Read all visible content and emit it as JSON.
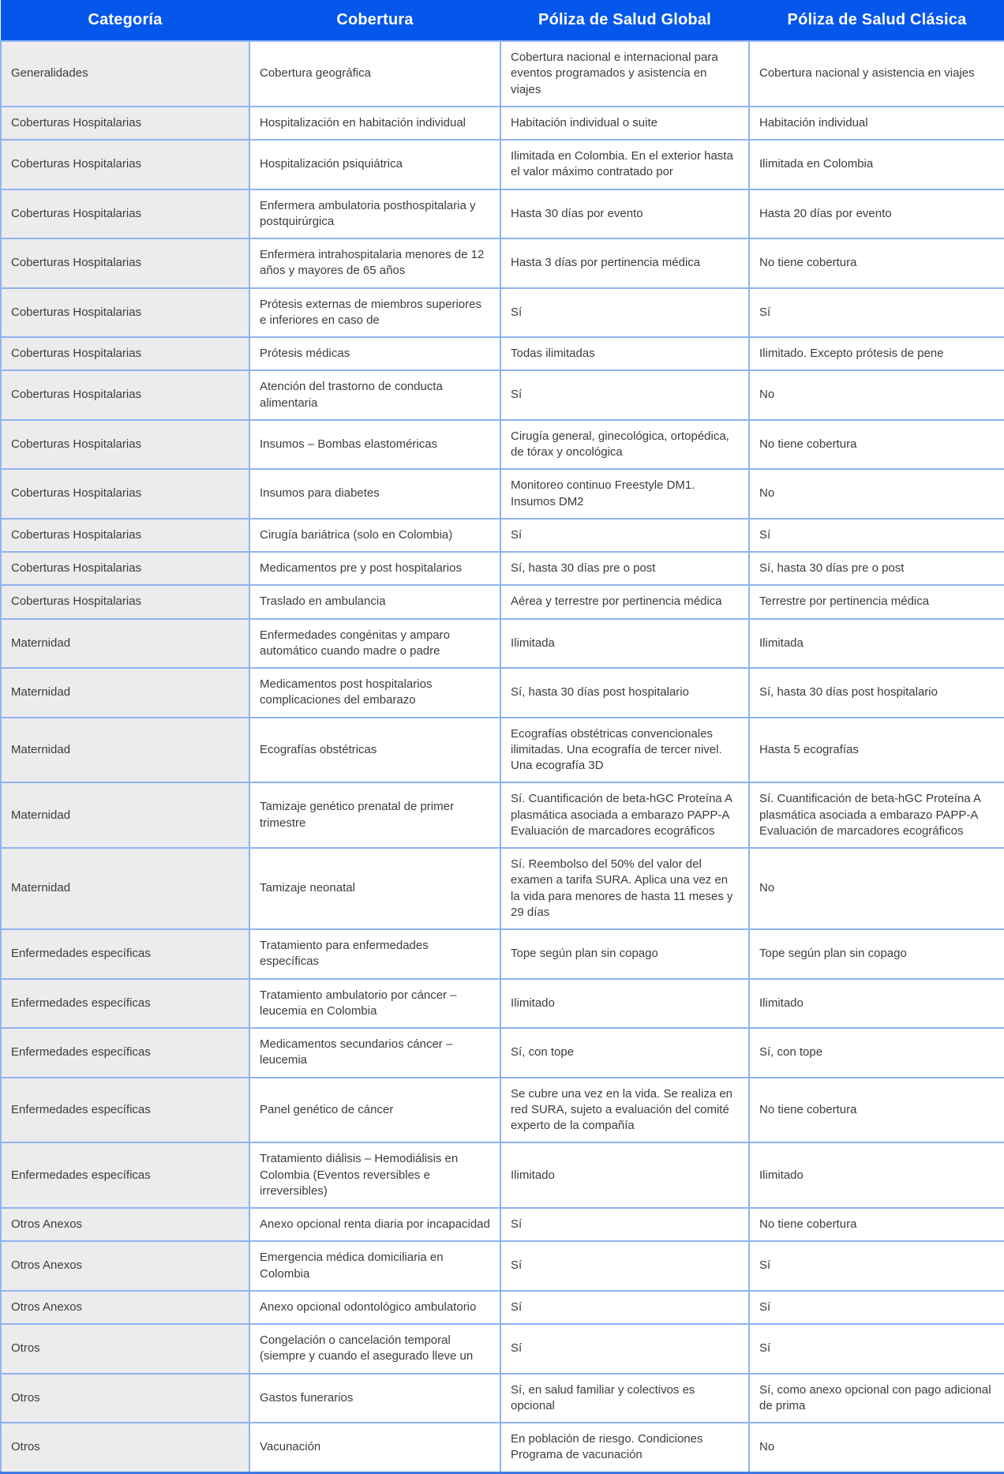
{
  "table": {
    "columns": [
      "Categoría",
      "Cobertura",
      "Póliza de Salud Global",
      "Póliza de Salud Clásica"
    ],
    "rows": [
      {
        "category": "Generalidades",
        "coverage": "Cobertura geográfica",
        "global": "Cobertura nacional e internacional para eventos programados y asistencia en viajes",
        "clasica": "Cobertura nacional y asistencia en viajes"
      },
      {
        "category": "Coberturas Hospitalarias",
        "coverage": "Hospitalización en habitación individual",
        "global": "Habitación individual o suite",
        "clasica": "Habitación individual"
      },
      {
        "category": "Coberturas Hospitalarias",
        "coverage": "Hospitalización psiquiátrica",
        "global": "Ilimitada en Colombia. En el exterior hasta el valor máximo contratado por",
        "clasica": "Ilimitada en Colombia"
      },
      {
        "category": "Coberturas Hospitalarias",
        "coverage": "Enfermera ambulatoria posthospitalaria y postquirúrgica",
        "global": "Hasta 30 días por evento",
        "clasica": "Hasta 20 días por evento"
      },
      {
        "category": "Coberturas Hospitalarias",
        "coverage": "Enfermera intrahospitalaria menores de 12 años y mayores de 65 años",
        "global": "Hasta 3 días por pertinencia médica",
        "clasica": "No tiene cobertura"
      },
      {
        "category": "Coberturas Hospitalarias",
        "coverage": "Prótesis externas de miembros superiores e inferiores en caso de",
        "global": "Sí",
        "clasica": "Sí"
      },
      {
        "category": "Coberturas Hospitalarias",
        "coverage": "Prótesis médicas",
        "global": "Todas ilimitadas",
        "clasica": "Ilimitado. Excepto prótesis de pene"
      },
      {
        "category": "Coberturas Hospitalarias",
        "coverage": "Atención del trastorno de conducta alimentaria",
        "global": "Sí",
        "clasica": "No"
      },
      {
        "category": "Coberturas Hospitalarias",
        "coverage": "Insumos – Bombas elastoméricas",
        "global": "Cirugía general, ginecológica, ortopédica, de tórax y oncológica",
        "clasica": "No tiene cobertura"
      },
      {
        "category": "Coberturas Hospitalarias",
        "coverage": "Insumos para diabetes",
        "global": "Monitoreo continuo Freestyle DM1. Insumos DM2",
        "clasica": "No"
      },
      {
        "category": "Coberturas Hospitalarias",
        "coverage": "Cirugía bariátrica (solo en Colombia)",
        "global": "Sí",
        "clasica": "Sí"
      },
      {
        "category": "Coberturas Hospitalarias",
        "coverage": "Medicamentos pre y post hospitalarios",
        "global": "Sí, hasta 30 días pre o post",
        "clasica": "Sí, hasta 30 días pre o post"
      },
      {
        "category": "Coberturas Hospitalarias",
        "coverage": "Traslado en ambulancia",
        "global": "Aérea y terrestre por pertinencia médica",
        "clasica": "Terrestre por pertinencia médica"
      },
      {
        "category": "Maternidad",
        "coverage": "Enfermedades congénitas y amparo automático cuando madre o padre",
        "global": "Ilimitada",
        "clasica": "Ilimitada"
      },
      {
        "category": "Maternidad",
        "coverage": "Medicamentos post hospitalarios complicaciones del embarazo",
        "global": "Sí, hasta 30 días post hospitalario",
        "clasica": "Sí, hasta 30 días post hospitalario"
      },
      {
        "category": "Maternidad",
        "coverage": "Ecografías obstétricas",
        "global": "Ecografías obstétricas convencionales ilimitadas. Una ecografía de tercer nivel. Una ecografía 3D",
        "clasica": "Hasta 5 ecografías"
      },
      {
        "category": "Maternidad",
        "coverage": "Tamizaje genético prenatal de primer trimestre",
        "global": "Sí. Cuantificación de beta-hGC Proteína A plasmática asociada a embarazo PAPP-A Evaluación de marcadores ecográficos",
        "clasica": "Sí. Cuantificación de beta-hGC Proteína A plasmática asociada a embarazo PAPP-A Evaluación de marcadores ecográficos"
      },
      {
        "category": "Maternidad",
        "coverage": "Tamizaje neonatal",
        "global": "Sí. Reembolso del 50% del valor del examen a tarifa SURA. Aplica una vez en la vida para menores de hasta 11 meses y 29 días",
        "clasica": "No"
      },
      {
        "category": "Enfermedades específicas",
        "coverage": "Tratamiento para enfermedades específicas",
        "global": "Tope según plan sin copago",
        "clasica": "Tope según plan sin copago"
      },
      {
        "category": "Enfermedades específicas",
        "coverage": "Tratamiento ambulatorio por cáncer – leucemia en Colombia",
        "global": "Ilimitado",
        "clasica": "Ilimitado"
      },
      {
        "category": "Enfermedades específicas",
        "coverage": "Medicamentos secundarios cáncer – leucemia",
        "global": "Sí, con tope",
        "clasica": "Sí, con tope"
      },
      {
        "category": "Enfermedades específicas",
        "coverage": "Panel genético de cáncer",
        "global": "Se cubre una vez en la vida. Se realiza en red SURA, sujeto a evaluación del comité experto de la compañía",
        "clasica": "No tiene cobertura"
      },
      {
        "category": "Enfermedades específicas",
        "coverage": "Tratamiento diálisis – Hemodiálisis en Colombia (Eventos reversibles e irreversibles)",
        "global": "Ilimitado",
        "clasica": "Ilimitado"
      },
      {
        "category": "Otros Anexos",
        "coverage": "Anexo opcional renta diaria por incapacidad",
        "global": "Sí",
        "clasica": "No tiene cobertura"
      },
      {
        "category": "Otros Anexos",
        "coverage": "Emergencia médica domiciliaria en Colombia",
        "global": "Sí",
        "clasica": "Sí"
      },
      {
        "category": "Otros Anexos",
        "coverage": "Anexo opcional odontológico ambulatorio",
        "global": "Sí",
        "clasica": "Sí"
      },
      {
        "category": "Otros",
        "coverage": "Congelación o cancelación temporal (siempre y cuando el asegurado lleve un",
        "global": "Sí",
        "clasica": "Sí"
      },
      {
        "category": "Otros",
        "coverage": "Gastos funerarios",
        "global": "Sí, en salud familiar y colectivos es opcional",
        "clasica": "Sí, como anexo opcional con pago adicional de prima"
      },
      {
        "category": "Otros",
        "coverage": "Vacunación",
        "global": "En población de riesgo. Condiciones Programa de vacunación",
        "clasica": "No"
      }
    ],
    "colors": {
      "header_bg": "#0556EA",
      "header_text": "#FFFFFF",
      "category_col_bg": "#ECECEC",
      "cell_border": "#8FB3F0",
      "bottom_border": "#3D7BEA",
      "page_bg": "#DAD7D2",
      "body_text": "#3C3C3C"
    }
  }
}
